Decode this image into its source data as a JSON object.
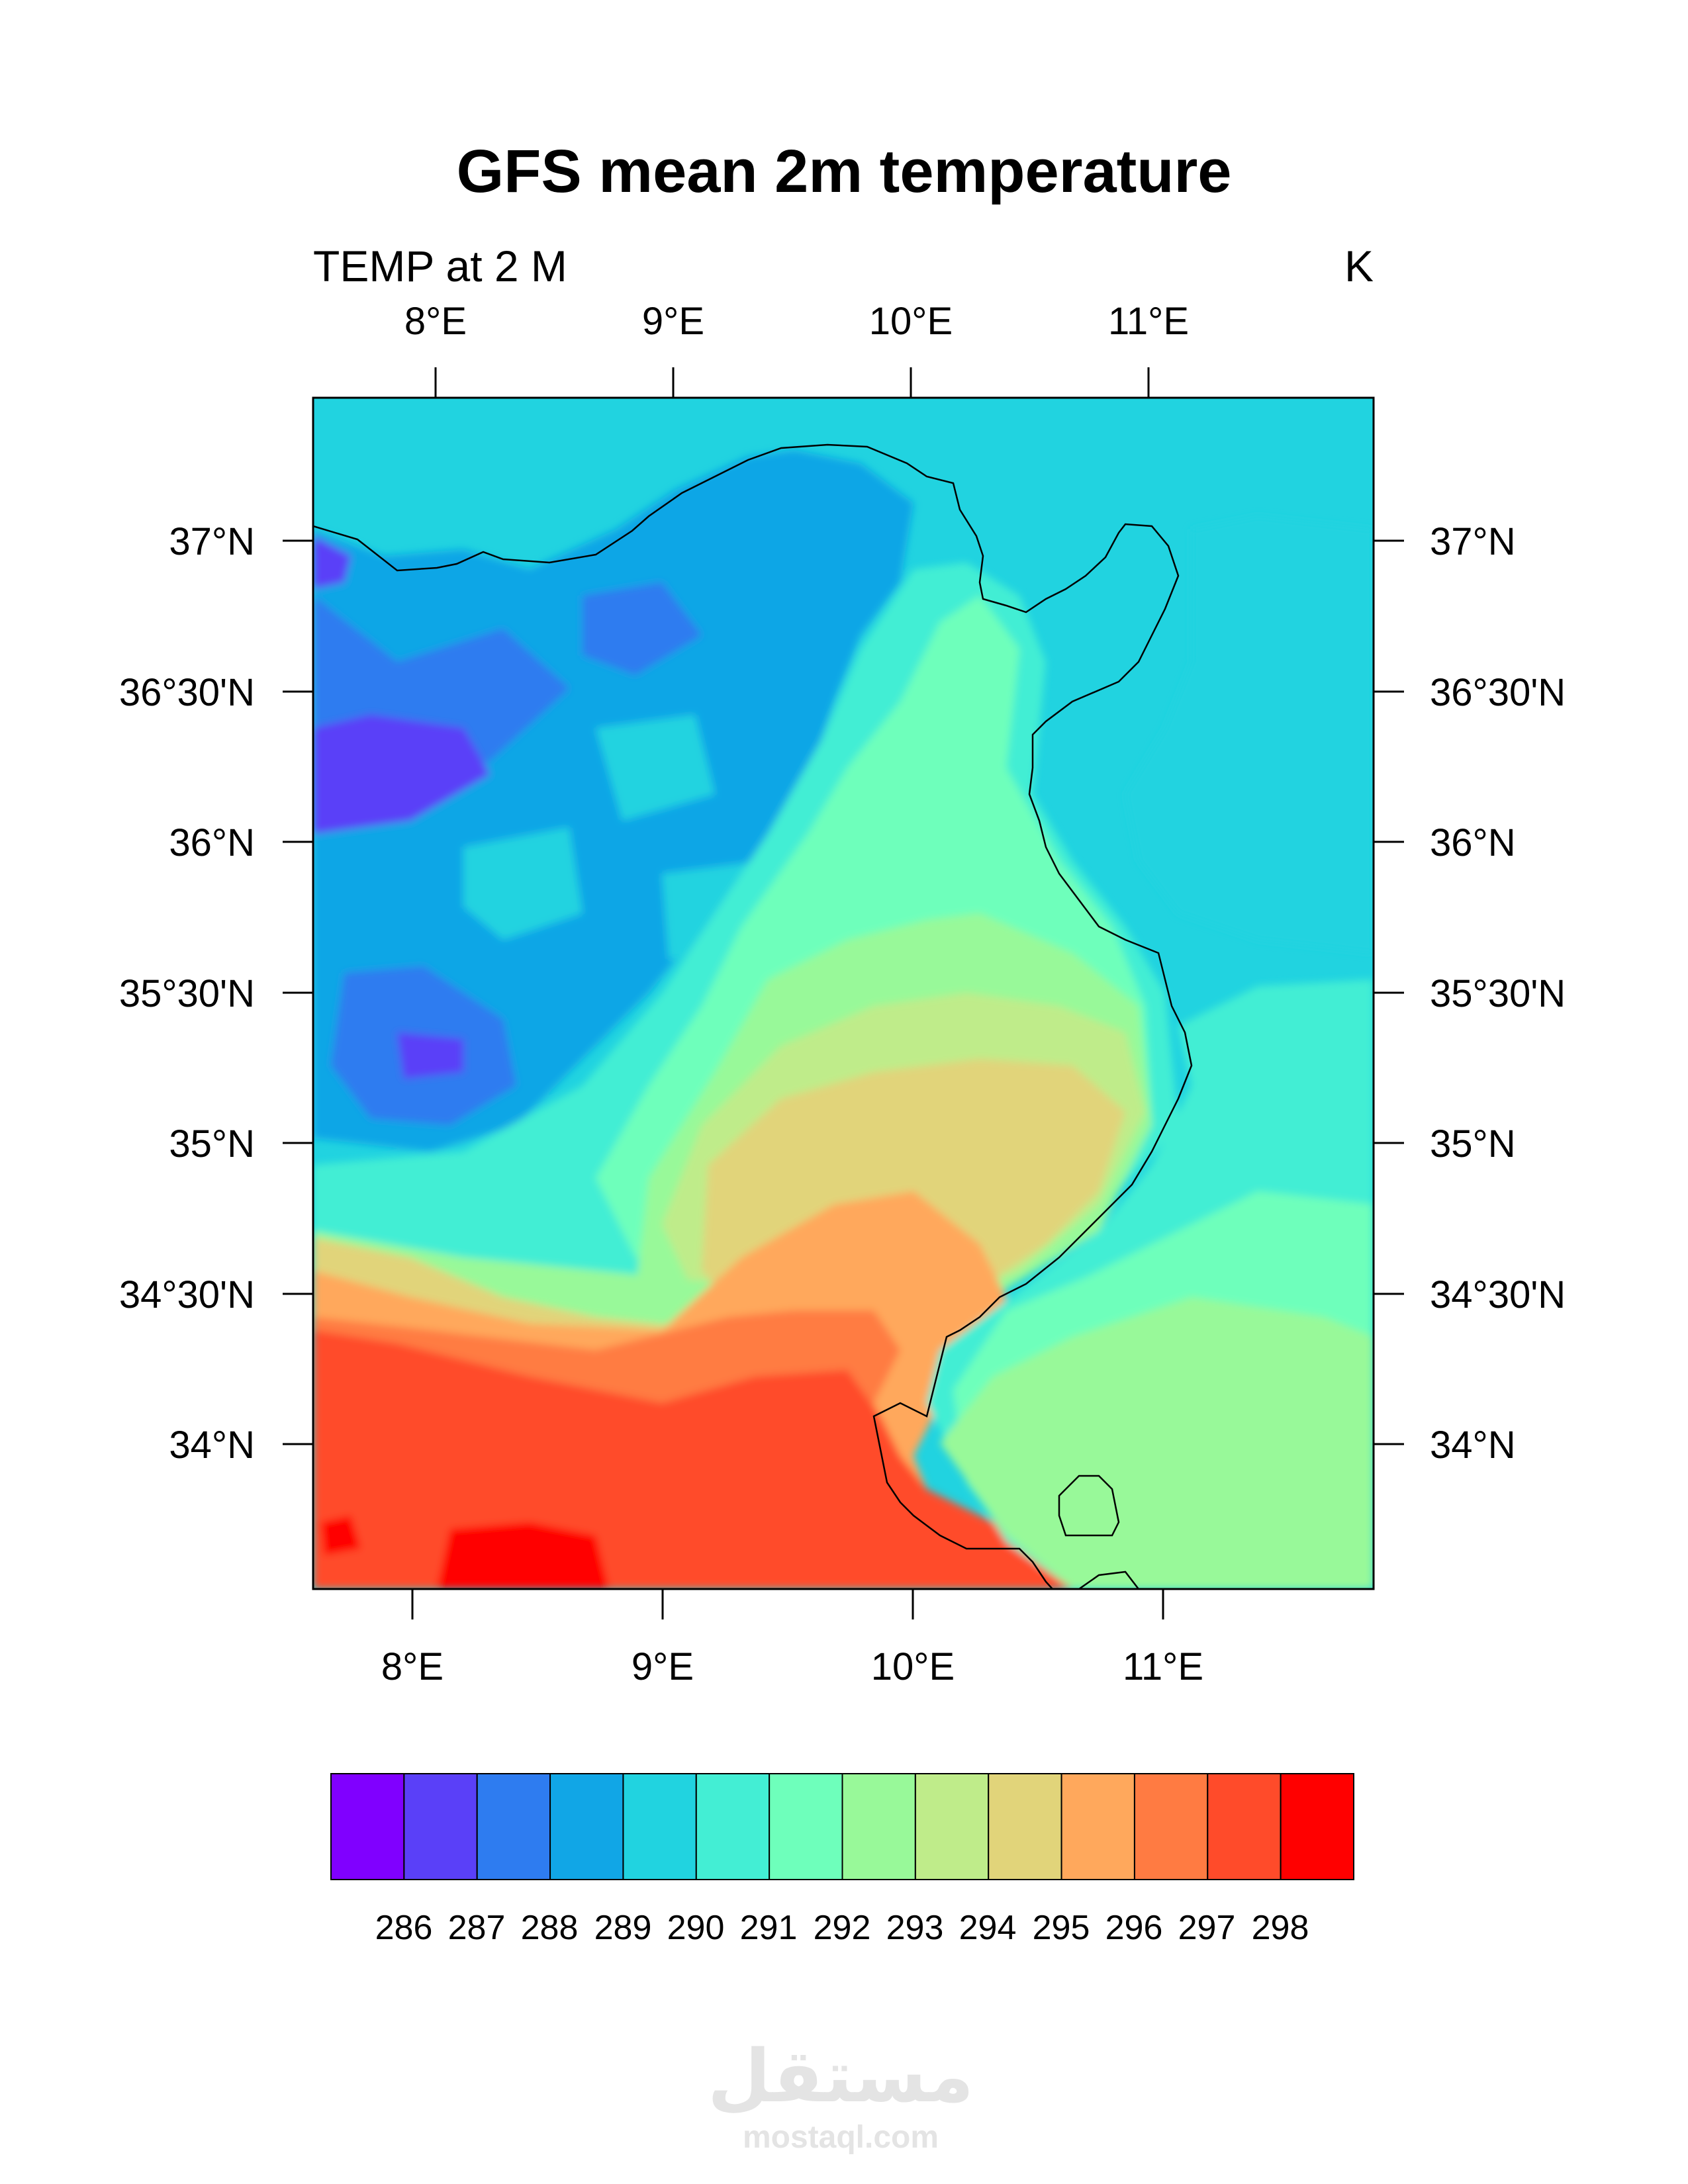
{
  "title": "GFS mean 2m temperature",
  "subtitle_left": "TEMP at 2 M",
  "subtitle_right": "K",
  "top_axis_labels": [
    "8°E",
    "9°E",
    "10°E",
    "11°E"
  ],
  "bottom_axis_labels": [
    "8°E",
    "9°E",
    "10°E",
    "11°E"
  ],
  "lat_labels": [
    "37°N",
    "36°30'N",
    "36°N",
    "35°30'N",
    "35°N",
    "34°30'N",
    "34°N"
  ],
  "colorbar": {
    "colors": [
      "#8000ff",
      "#5a40f8",
      "#2e7cf0",
      "#11a6e6",
      "#21d3e0",
      "#43eed4",
      "#6effbb",
      "#98f999",
      "#bfec8a",
      "#e1d47a",
      "#ffa85c",
      "#ff7b42",
      "#ff4b2a",
      "#ff0000"
    ],
    "labels": [
      "286",
      "287",
      "288",
      "289",
      "290",
      "291",
      "292",
      "293",
      "294",
      "295",
      "296",
      "297",
      "298"
    ]
  },
  "watermark": {
    "logo": "مستقل",
    "url": "mostaql.com"
  }
}
